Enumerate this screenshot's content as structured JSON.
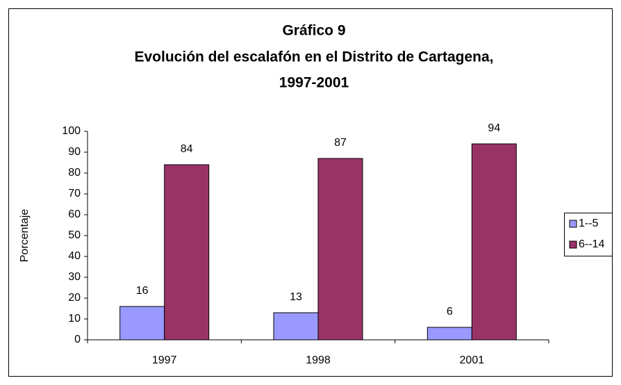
{
  "chart_data": {
    "type": "bar",
    "title": [
      "Gráfico 9",
      "Evolución  del escalafón en el Distrito de Cartagena,",
      "1997-2001"
    ],
    "ylabel": "Porcentaje",
    "categories": [
      "1997",
      "1998",
      "2001"
    ],
    "series": [
      {
        "name": "1--5",
        "color": "#9999ff",
        "values": [
          16,
          13,
          6
        ]
      },
      {
        "name": "6--14",
        "color": "#993366",
        "values": [
          84,
          87,
          94
        ]
      }
    ],
    "ylim": [
      0,
      100
    ],
    "yticks": [
      0,
      10,
      20,
      30,
      40,
      50,
      60,
      70,
      80,
      90,
      100
    ],
    "legend": "right"
  }
}
